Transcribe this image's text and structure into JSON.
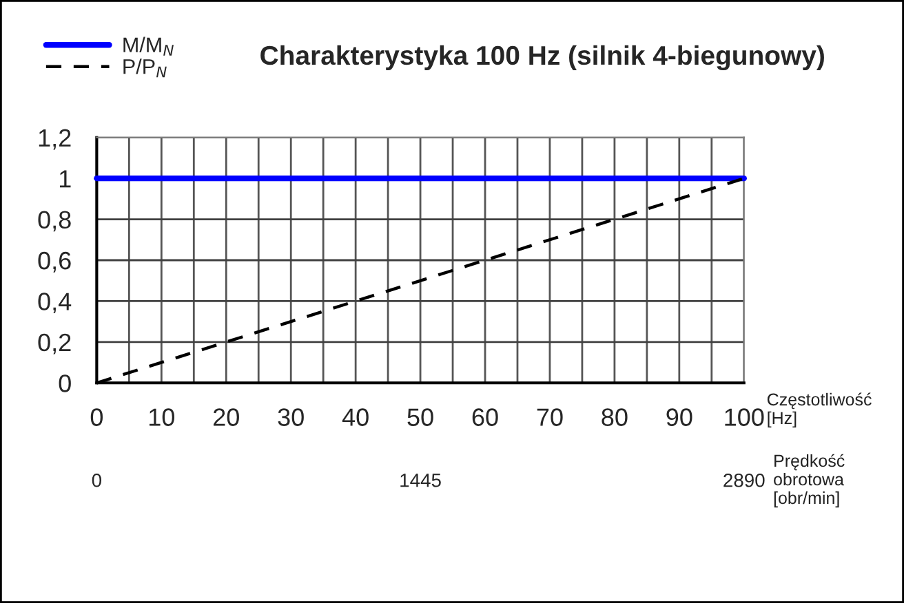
{
  "chart_data": {
    "type": "line",
    "title": "Charakterystyka 100 Hz (silnik 4-biegunowy)",
    "xlabel": "Częstotliwość\n[Hz]",
    "x2label": "Prędkość\nobrotowa\n[obr/min]",
    "x": [
      0,
      100
    ],
    "series": [
      {
        "name": "M/M$_{N}$",
        "color": "#0000ff",
        "values": [
          1,
          1
        ],
        "line_style": "solid"
      },
      {
        "name": "P/P$_{N}$",
        "color": "#000000",
        "values": [
          0,
          1
        ],
        "line_style": "dashed"
      }
    ],
    "xlim": [
      0,
      100
    ],
    "xticks": [
      0,
      {
        "value": 5,
        "label": null
      },
      10,
      {
        "value": 15,
        "label": null
      },
      20,
      {
        "value": 25,
        "label": null
      },
      30,
      {
        "value": 35,
        "label": null
      },
      40,
      {
        "value": 45,
        "label": null
      },
      50,
      {
        "value": 55,
        "label": null
      },
      60,
      {
        "value": 65,
        "label": null
      },
      70,
      {
        "value": 75,
        "label": null
      },
      80,
      {
        "value": 85,
        "label": null
      },
      90,
      {
        "value": 95,
        "label": null
      },
      100
    ],
    "x2lim": [
      0,
      2890
    ],
    "x2ticks": [
      0,
      1445,
      2890
    ],
    "ylim": [
      0,
      1.2
    ],
    "yticks": [
      0,
      {
        "value": 0.2,
        "label": "0,2"
      },
      {
        "value": 0.4,
        "label": "0,4"
      },
      {
        "value": 0.6,
        "label": "0,6"
      },
      {
        "value": 0.8,
        "label": "0,8"
      },
      1,
      {
        "value": 1.2,
        "label": "1,2"
      }
    ],
    "grid": true,
    "legend": "top left",
    "marker": "none"
  }
}
